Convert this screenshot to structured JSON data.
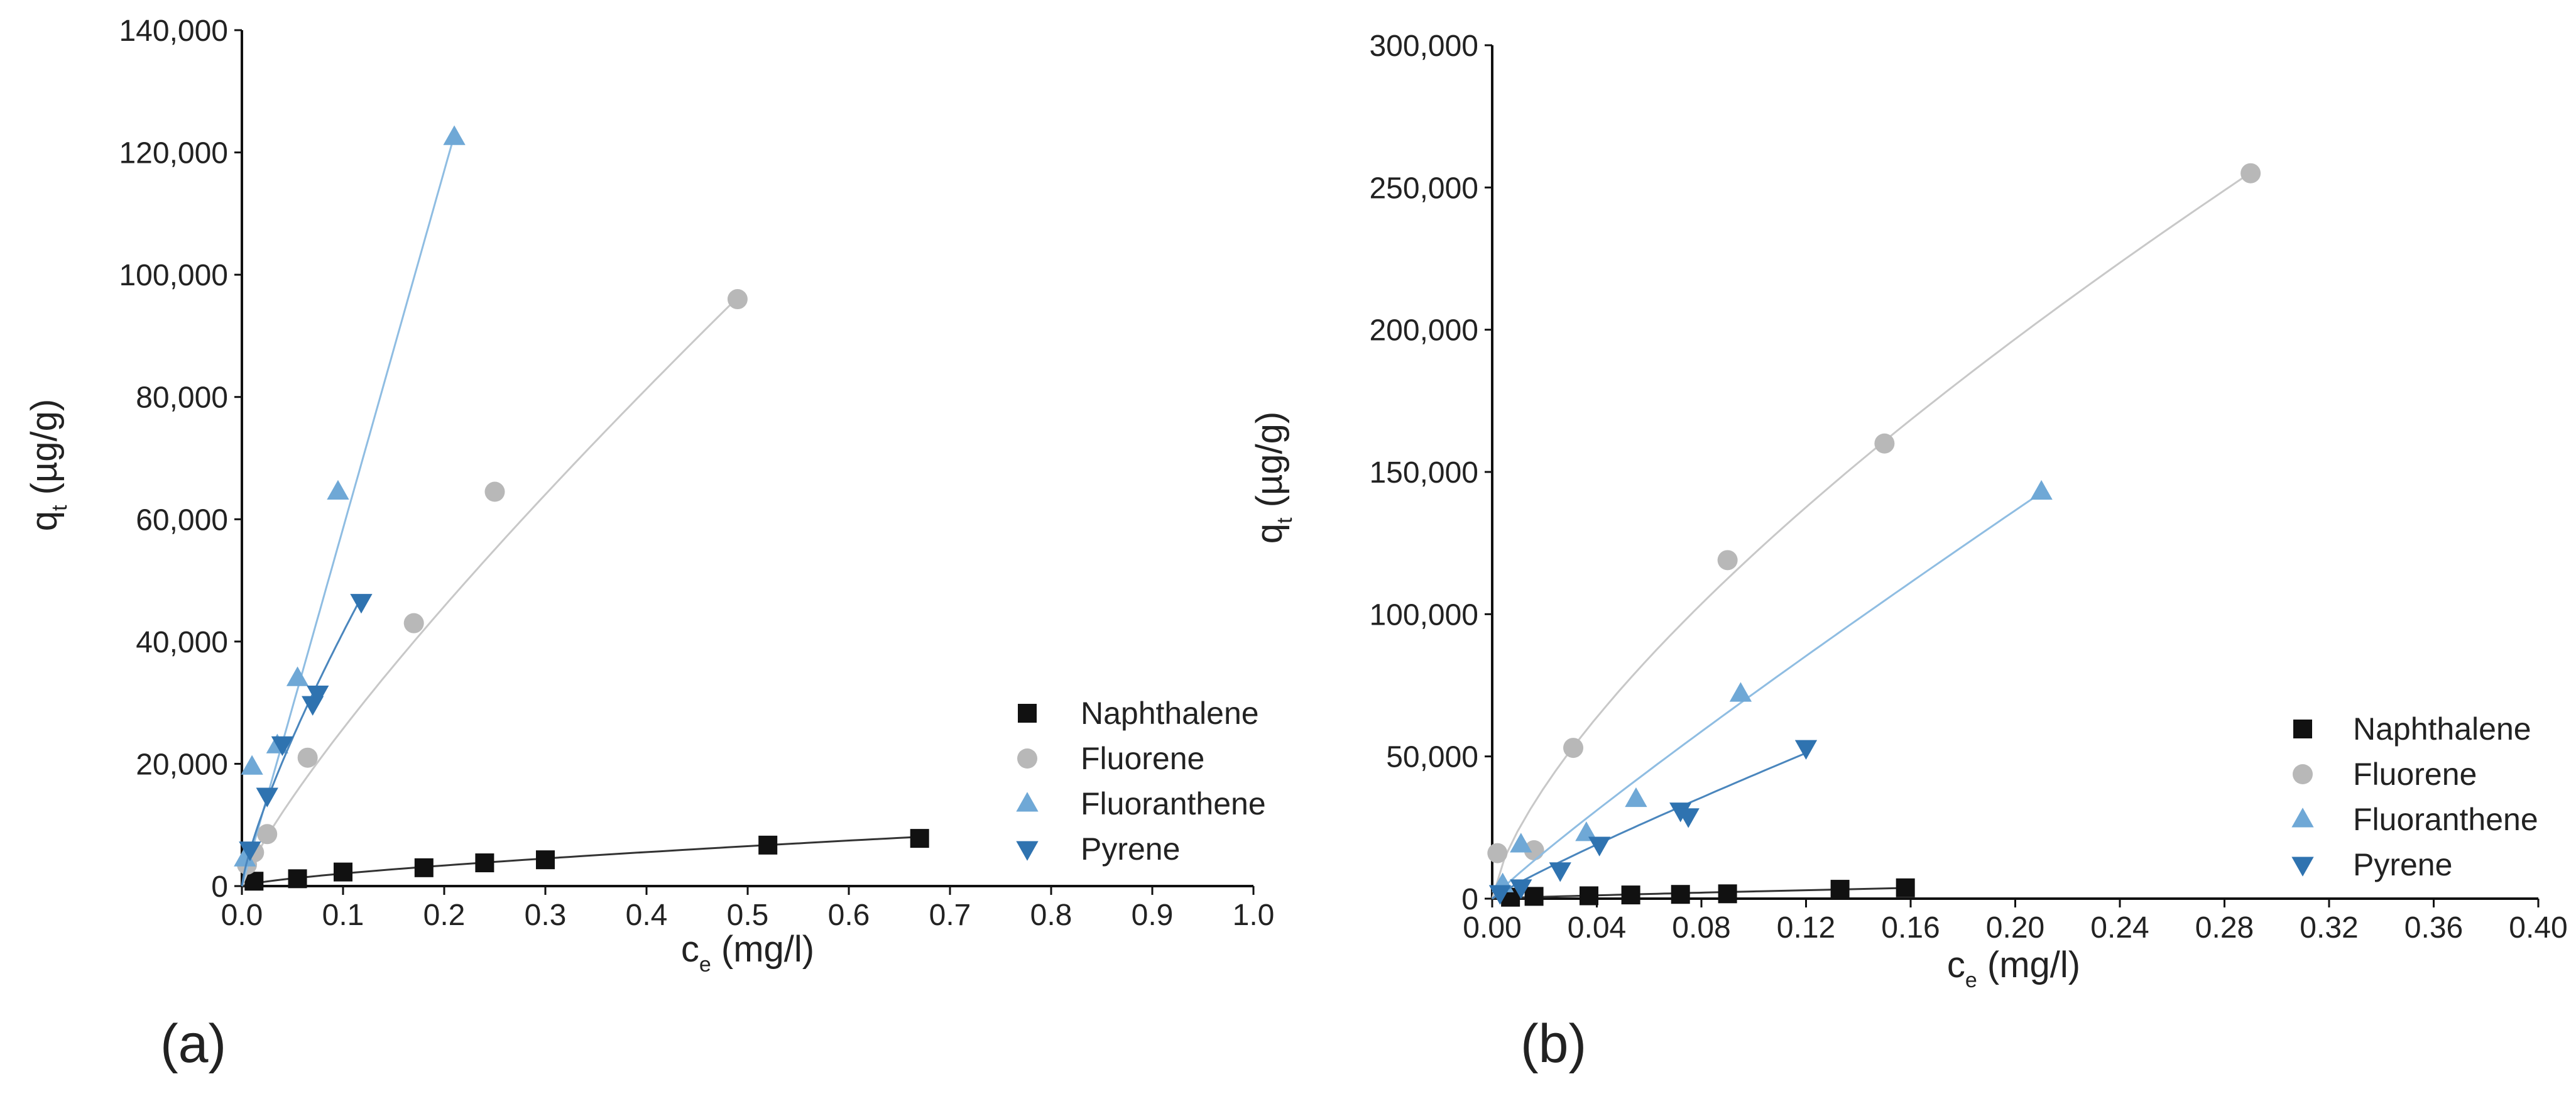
{
  "figure_labels": [
    "(a)",
    "(b)"
  ],
  "chart_data": [
    {
      "type": "scatter",
      "panel_label": "(a)",
      "xlabel_main": "c",
      "xlabel_sub": "e",
      "xlabel_rest": " (mg/l)",
      "ylabel_main": "q",
      "ylabel_sub": "t",
      "ylabel_rest": " (µg/g)",
      "xlim": [
        0,
        1.0
      ],
      "ylim": [
        0,
        140000
      ],
      "xticks": [
        0.0,
        0.1,
        0.2,
        0.3,
        0.4,
        0.5,
        0.6,
        0.7,
        0.8,
        0.9,
        1.0
      ],
      "xtick_labels": [
        "0.0",
        "0.1",
        "0.2",
        "0.3",
        "0.4",
        "0.5",
        "0.6",
        "0.7",
        "0.8",
        "0.9",
        "1.0"
      ],
      "yticks": [
        0,
        20000,
        40000,
        60000,
        80000,
        100000,
        120000,
        140000
      ],
      "ytick_labels": [
        "0",
        "20,000",
        "40,000",
        "60,000",
        "80,000",
        "100,000",
        "120,000",
        "140,000"
      ],
      "legend_position": "lower-right",
      "grid": false,
      "series": [
        {
          "name": "Naphthalene",
          "marker": "square",
          "color": "#111111",
          "line_color": "#333333",
          "x": [
            0.012,
            0.055,
            0.1,
            0.18,
            0.24,
            0.3,
            0.52,
            0.67
          ],
          "y": [
            800,
            1200,
            2300,
            3000,
            3800,
            4300,
            6700,
            7800
          ],
          "fit_power": 0.72,
          "fit_c": 10750
        },
        {
          "name": "Fluorene",
          "marker": "circle",
          "color": "#b8b8b8",
          "line_color": "#c8c8c8",
          "x": [
            0.005,
            0.012,
            0.025,
            0.065,
            0.17,
            0.25,
            0.49
          ],
          "y": [
            3500,
            5500,
            8500,
            21000,
            43000,
            64500,
            96000
          ],
          "fit_power": 0.83,
          "fit_c": 174000
        },
        {
          "name": "Fluoranthene",
          "marker": "triangle-up",
          "color": "#6fa8d6",
          "line_color": "#8fbde2",
          "x": [
            0.003,
            0.01,
            0.035,
            0.055,
            0.095,
            0.21
          ],
          "y": [
            4500,
            19500,
            23000,
            34000,
            64500,
            122500
          ],
          "fit_power": 1.0,
          "fit_c": 585000
        },
        {
          "name": "Pyrene",
          "marker": "triangle-down",
          "color": "#2f73b0",
          "line_color": "#4a86bd",
          "x": [
            0.008,
            0.025,
            0.04,
            0.07,
            0.075,
            0.118
          ],
          "y": [
            6000,
            14800,
            23200,
            29800,
            31500,
            46500
          ],
          "fit_power": 0.78,
          "fit_c": 250000
        }
      ]
    },
    {
      "type": "scatter",
      "panel_label": "(b)",
      "xlabel_main": "c",
      "xlabel_sub": "e",
      "xlabel_rest": " (mg/l)",
      "ylabel_main": "q",
      "ylabel_sub": "t",
      "ylabel_rest": " (µg/g)",
      "xlim": [
        0,
        0.4
      ],
      "ylim": [
        0,
        300000
      ],
      "xticks": [
        0.0,
        0.04,
        0.08,
        0.12,
        0.16,
        0.2,
        0.24,
        0.28,
        0.32,
        0.36,
        0.4
      ],
      "xtick_labels": [
        "0.00",
        "0.04",
        "0.08",
        "0.12",
        "0.16",
        "0.20",
        "0.24",
        "0.28",
        "0.32",
        "0.36",
        "0.40"
      ],
      "yticks": [
        0,
        50000,
        100000,
        150000,
        200000,
        250000,
        300000
      ],
      "ytick_labels": [
        "0",
        "50,000",
        "100,000",
        "150,000",
        "200,000",
        "250,000",
        "300,000"
      ],
      "legend_position": "lower-right",
      "grid": false,
      "series": [
        {
          "name": "Naphthalene",
          "marker": "square",
          "color": "#111111",
          "line_color": "#333333",
          "x": [
            0.007,
            0.016,
            0.037,
            0.053,
            0.072,
            0.09,
            0.133,
            0.158
          ],
          "y": [
            500,
            800,
            1000,
            1300,
            1500,
            1700,
            3300,
            3800
          ],
          "fit_power": 0.85,
          "fit_c": 18000
        },
        {
          "name": "Fluorene",
          "marker": "circle",
          "color": "#b8b8b8",
          "line_color": "#c8c8c8",
          "x": [
            0.002,
            0.016,
            0.031,
            0.09,
            0.15,
            0.29
          ],
          "y": [
            16000,
            17000,
            53000,
            119000,
            160000,
            255000
          ],
          "fit_power": 0.7,
          "fit_c": 607000
        },
        {
          "name": "Fluoranthene",
          "marker": "triangle-up",
          "color": "#6fa8d6",
          "line_color": "#8fbde2",
          "x": [
            0.004,
            0.011,
            0.036,
            0.055,
            0.095,
            0.21
          ],
          "y": [
            5000,
            19000,
            23000,
            35000,
            72000,
            143000
          ],
          "fit_power": 0.92,
          "fit_c": 600000
        },
        {
          "name": "Pyrene",
          "marker": "triangle-down",
          "color": "#2f73b0",
          "line_color": "#4a86bd",
          "x": [
            0.003,
            0.011,
            0.026,
            0.041,
            0.072,
            0.075,
            0.12
          ],
          "y": [
            2000,
            4000,
            10000,
            19000,
            31000,
            29000,
            53000
          ],
          "fit_power": 0.9,
          "fit_c": 345000
        }
      ]
    }
  ]
}
